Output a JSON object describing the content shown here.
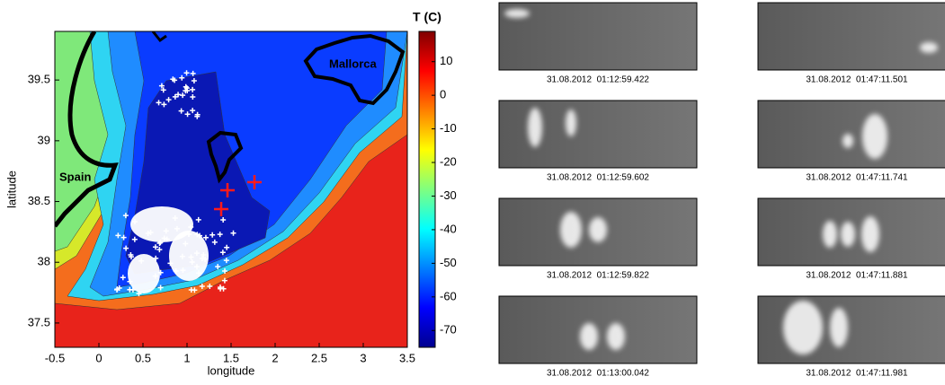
{
  "map": {
    "xlabel": "longitude",
    "ylabel": "latitude",
    "xlim": [
      -0.5,
      3.5
    ],
    "ylim": [
      37.3,
      39.9
    ],
    "xticks": [
      -0.5,
      0,
      0.5,
      1,
      1.5,
      2,
      2.5,
      3,
      3.5
    ],
    "yticks": [
      37.5,
      38,
      38.5,
      39,
      39.5
    ],
    "place_labels": [
      "Spain",
      "Mallorca"
    ]
  },
  "colorbar": {
    "title": "T (C)",
    "lim": [
      -75,
      19
    ],
    "ticks": [
      10,
      0,
      -10,
      -20,
      -30,
      -40,
      -50,
      -60,
      -70
    ]
  },
  "frames": [
    {
      "timestamp": "31.08.2012  01:12:59.422"
    },
    {
      "timestamp": "31.08.2012  01:12:59.602"
    },
    {
      "timestamp": "31.08.2012  01:12:59.822"
    },
    {
      "timestamp": "31.08.2012  01:13:00.042"
    },
    {
      "timestamp": "31.08.2012  01:47:11.501"
    },
    {
      "timestamp": "31.08.2012  01:47:11.741"
    },
    {
      "timestamp": "31.08.2012  01:47:11.881"
    },
    {
      "timestamp": "31.08.2012  01:47:11.981"
    }
  ]
}
